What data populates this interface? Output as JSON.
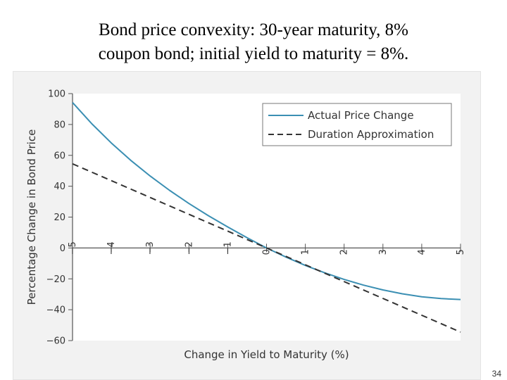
{
  "slide": {
    "title_line1": "Bond price convexity: 30-year maturity, 8%",
    "title_line2": "coupon bond; initial yield to maturity = 8%.",
    "page_number": "34"
  },
  "chart_data": {
    "type": "line",
    "title": "",
    "xlabel": "Change in Yield to Maturity (%)",
    "ylabel": "Percentage Change in Bond Price",
    "xlim": [
      -5,
      5
    ],
    "ylim": [
      -60,
      100
    ],
    "x_ticks": [
      -5,
      -4,
      -3,
      -2,
      -1,
      0,
      1,
      2,
      3,
      4,
      5
    ],
    "x_tick_labels": [
      "−5",
      "−4",
      "−3",
      "−2",
      "−1",
      "0",
      "1",
      "2",
      "3",
      "4",
      "5"
    ],
    "y_ticks": [
      100,
      80,
      60,
      40,
      20,
      0,
      -20,
      -40,
      -60
    ],
    "y_tick_labels": [
      "100",
      "80",
      "60",
      "40",
      "20",
      "0",
      "−20",
      "−40",
      "−60"
    ],
    "grid": false,
    "legend_position": "top-right",
    "colors": {
      "actual": "#3b8fb3",
      "duration": "#333333"
    },
    "series": [
      {
        "name": "Actual Price Change",
        "style": "solid",
        "x": [
          -5,
          -4.5,
          -4,
          -3.5,
          -3,
          -2.5,
          -2,
          -1.5,
          -1,
          -0.5,
          0,
          0.5,
          1,
          1.5,
          2,
          2.5,
          3,
          3.5,
          4,
          4.5,
          5
        ],
        "y": [
          94.2,
          80.4,
          68,
          56.8,
          46.6,
          37.3,
          28.8,
          20.9,
          13.6,
          6.6,
          0,
          -5.9,
          -11.3,
          -16.1,
          -20.4,
          -24.1,
          -27.2,
          -29.7,
          -31.6,
          -32.8,
          -33.4
        ]
      },
      {
        "name": "Duration Approximation",
        "style": "dashed",
        "x": [
          -5,
          5
        ],
        "y": [
          54.5,
          -54.5
        ]
      }
    ]
  }
}
